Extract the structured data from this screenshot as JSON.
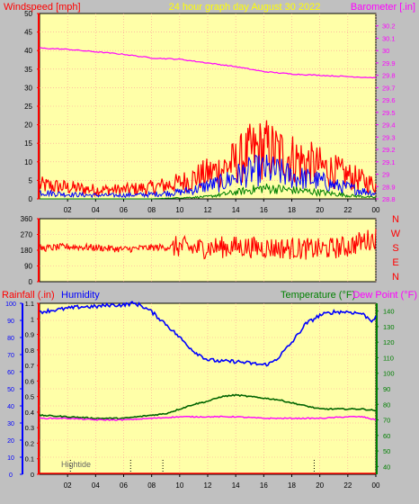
{
  "header": {
    "left_title": "Windspeed [mph]",
    "center_title": "24 hour graph day   August 30 2022",
    "right_title": "Barometer [.in]"
  },
  "colors": {
    "background": "#c0c0c0",
    "plot_bg": "#ffffa8",
    "grid": "#ff9999",
    "red": "#ff0000",
    "blue": "#0000ff",
    "green": "#008000",
    "magenta": "#ff00ff",
    "darkgreen": "#006400"
  },
  "chart_data": [
    {
      "id": "wind",
      "type": "line",
      "ylabel": "Windspeed [mph]",
      "y2label": "Barometer [.in]",
      "x_ticks": [
        "02",
        "04",
        "06",
        "08",
        "10",
        "12",
        "14",
        "16",
        "18",
        "20",
        "22",
        "00"
      ],
      "ylim": [
        0,
        50
      ],
      "y_ticks": [
        "0",
        "5",
        "10",
        "15",
        "20",
        "25",
        "30",
        "35",
        "40",
        "45",
        "50"
      ],
      "y2lim": [
        28.8,
        30.3
      ],
      "y2_ticks": [
        "28.8",
        "28.9",
        "29",
        "29.1",
        "29.2",
        "29.3",
        "29.4",
        "29.5",
        "29.6",
        "29.7",
        "29.8",
        "29.9",
        "30",
        "30.1",
        "30.2"
      ],
      "series": [
        {
          "key": "gust",
          "color": "#ff0000",
          "hours": [
            0,
            2,
            4,
            6,
            8,
            10,
            11,
            12,
            13,
            14,
            15,
            16,
            17,
            18,
            19,
            20,
            21,
            22,
            23,
            24
          ],
          "values": [
            3,
            2.5,
            2,
            2,
            2.5,
            3.5,
            4.5,
            5.5,
            6.5,
            8,
            10,
            11,
            10,
            9,
            8,
            7,
            6,
            5,
            4,
            3
          ]
        },
        {
          "key": "avg",
          "color": "#0000ff",
          "hours": [
            0,
            2,
            4,
            6,
            8,
            10,
            11,
            12,
            13,
            14,
            15,
            16,
            17,
            18,
            19,
            20,
            21,
            22,
            23,
            24
          ],
          "values": [
            1.5,
            1,
            0.8,
            0.8,
            1,
            1.5,
            2,
            3,
            3.5,
            5,
            6,
            6.5,
            6,
            5,
            4.5,
            4,
            3,
            2.5,
            1.8,
            1.2
          ]
        },
        {
          "key": "low",
          "color": "#008000",
          "hours": [
            0,
            8,
            12,
            14,
            16,
            18,
            20,
            22,
            24
          ],
          "values": [
            0,
            0,
            0.5,
            1.5,
            2.5,
            2,
            1.5,
            0.8,
            0.3
          ]
        },
        {
          "key": "barometer",
          "color": "#ff00ff",
          "axis": "right",
          "hours": [
            0,
            2,
            4,
            6,
            8,
            10,
            12,
            14,
            16,
            18,
            20,
            22,
            24
          ],
          "values": [
            30.02,
            30.01,
            29.99,
            29.97,
            29.94,
            29.93,
            29.9,
            29.87,
            29.83,
            29.81,
            29.8,
            29.79,
            29.78
          ]
        }
      ]
    },
    {
      "id": "direction",
      "type": "line",
      "ylim": [
        0,
        360
      ],
      "y_ticks": [
        "0",
        "90",
        "180",
        "270",
        "360"
      ],
      "compass": [
        "N",
        "W",
        "S",
        "E",
        "N"
      ],
      "series": [
        {
          "key": "direction",
          "color": "#ff0000",
          "hours": [
            0,
            2,
            4,
            6,
            8,
            10,
            11,
            12,
            14,
            16,
            18,
            20,
            22,
            23,
            24
          ],
          "values": [
            190,
            200,
            195,
            185,
            195,
            200,
            190,
            195,
            200,
            195,
            190,
            185,
            200,
            230,
            250
          ]
        }
      ]
    },
    {
      "id": "temp",
      "type": "line",
      "ylabel_left_1": "Rainfall (.in)",
      "ylabel_left_2": "Humidity",
      "ylabel_right_1": "Temperature (°F)",
      "ylabel_right_2": "Dew Point (°F)",
      "annotation": "Hightide",
      "x_ticks": [
        "02",
        "04",
        "06",
        "08",
        "10",
        "12",
        "14",
        "16",
        "18",
        "20",
        "22",
        "00"
      ],
      "rain_lim": [
        0,
        1.1
      ],
      "rain_ticks": [
        "0",
        "0.1",
        "0.2",
        "0.3",
        "0.4",
        "0.5",
        "0.6",
        "0.7",
        "0.8",
        "0.9",
        "1",
        "1.1"
      ],
      "hum_lim": [
        0,
        100
      ],
      "hum_ticks": [
        "0",
        "10",
        "20",
        "30",
        "40",
        "50",
        "60",
        "70",
        "80",
        "90",
        "100"
      ],
      "temp_lim": [
        35,
        145
      ],
      "temp_ticks": [
        "40",
        "50",
        "60",
        "70",
        "80",
        "90",
        "100",
        "110",
        "120",
        "130",
        "140"
      ],
      "tide_marks": [
        2.2,
        6.5,
        8.8,
        19.6
      ],
      "series": [
        {
          "key": "humidity",
          "color": "#0000ff",
          "axis": "humidity",
          "hours": [
            0,
            1,
            2,
            3,
            4,
            5,
            6,
            6.6,
            7.2,
            8,
            9,
            10,
            11,
            12,
            13,
            14,
            15,
            16,
            16.5,
            17,
            18,
            19,
            20,
            21,
            22,
            23,
            23.7,
            24
          ],
          "values": [
            95,
            96,
            97,
            98,
            98,
            99,
            99,
            100,
            99,
            95,
            88,
            80,
            72,
            67,
            66,
            66,
            65,
            64,
            65,
            68,
            77,
            88,
            93,
            95,
            95,
            94,
            90,
            92
          ]
        },
        {
          "key": "temperature",
          "color": "#006400",
          "axis": "temperature",
          "hours": [
            0,
            2,
            4,
            6,
            7,
            8,
            9,
            10,
            11,
            12,
            13,
            14,
            15,
            16,
            17,
            18,
            19,
            20,
            21,
            22,
            23,
            24
          ],
          "values": [
            73,
            72,
            71,
            71,
            72,
            73,
            74,
            77,
            80,
            82,
            85,
            86,
            85,
            84,
            83,
            81,
            79,
            77,
            77,
            77,
            77,
            76
          ]
        },
        {
          "key": "dewpoint",
          "color": "#ff00ff",
          "axis": "temperature",
          "hours": [
            0,
            2,
            4,
            6,
            8,
            10,
            12,
            14,
            16,
            18,
            20,
            22,
            23,
            24
          ],
          "values": [
            71,
            71,
            70,
            70,
            71,
            72,
            72,
            72,
            71,
            71,
            71,
            72,
            72,
            70
          ]
        }
      ]
    }
  ]
}
